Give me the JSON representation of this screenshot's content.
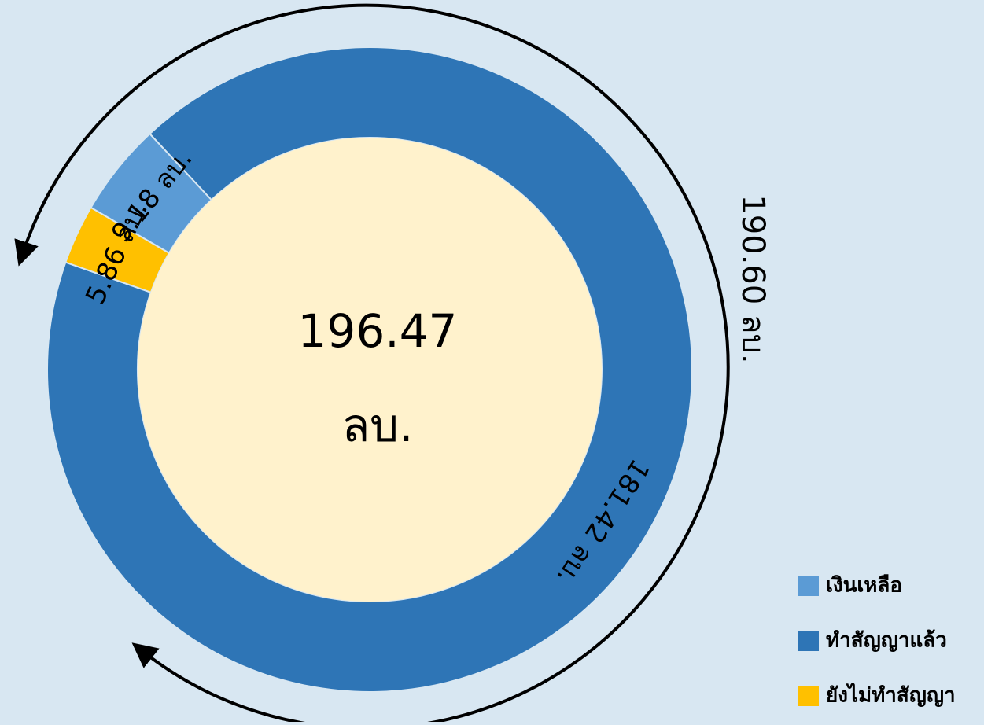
{
  "chart_data": {
    "type": "donut",
    "categories": [
      "เงินเหลือ",
      "ทำสัญญาแล้ว",
      "ยังไม่ทำสัญญา"
    ],
    "values": [
      9.18,
      181.42,
      5.86
    ],
    "value_labels": [
      "9.18 ลบ.",
      "181.42 ลบ.",
      "5.86 ลบ."
    ],
    "colors": [
      "#5b9bd5",
      "#2e75b6",
      "#ffc000"
    ],
    "center_label": [
      "196.47",
      "ลบ."
    ],
    "annotation": "190.60 ลบ.",
    "legend": "lower right"
  }
}
